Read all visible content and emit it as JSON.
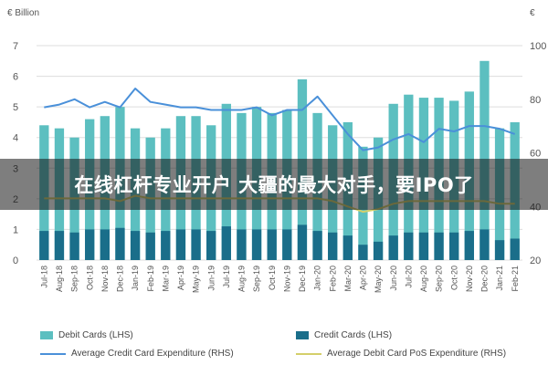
{
  "chart_data": {
    "type": "bar",
    "title": "",
    "unit_left": "€ Billion",
    "unit_right": "€",
    "y_left": {
      "ticks": [
        0,
        1,
        2,
        3,
        4,
        5,
        6,
        7
      ],
      "range": [
        0,
        7
      ]
    },
    "y_right": {
      "ticks": [
        20,
        40,
        60,
        80,
        100
      ],
      "range": [
        20,
        100
      ]
    },
    "categories": [
      "Jul-18",
      "Aug-18",
      "Sep-18",
      "Oct-18",
      "Nov-18",
      "Dec-18",
      "Jan-19",
      "Feb-19",
      "Mar-19",
      "Apr-19",
      "May-19",
      "Jun-19",
      "Jul-19",
      "Aug-19",
      "Sep-19",
      "Oct-19",
      "Nov-19",
      "Dec-19",
      "Jan-20",
      "Feb-20",
      "Mar-20",
      "Apr-20",
      "May-20",
      "Jun-20",
      "Jul-20",
      "Aug-20",
      "Sep-20",
      "Oct-20",
      "Nov-20",
      "Dec-20",
      "Jan-21",
      "Feb-21"
    ],
    "x_tick_labels": [
      "Jul-18",
      "Aug-18",
      "Sep-18",
      "Oct-18",
      "Nov-18",
      "Dec-18",
      "Jan-19",
      "Feb-19",
      "Mar-19",
      "Apr-19",
      "May-19",
      "Jun-19",
      "Jul-19",
      "Aug-19",
      "Sep-19",
      "Oct-19",
      "Nov-19",
      "Dec-19",
      "Jan-20",
      "Feb-20",
      "Mar-20",
      "Apr-20",
      "May-20",
      "Jun-20",
      "Jul-20",
      "Aug-20",
      "Sep-20",
      "Oct-20",
      "Nov-20",
      "Dec-20",
      "Jan-21",
      "Feb-21"
    ],
    "series": [
      {
        "name": "Debit Cards (LHS)",
        "type": "bar",
        "axis": "left",
        "color": "#5cbfc0",
        "values": [
          4.4,
          4.3,
          4.0,
          4.6,
          4.7,
          5.0,
          4.3,
          4.0,
          4.3,
          4.7,
          4.7,
          4.4,
          5.1,
          4.8,
          5.0,
          4.8,
          4.9,
          5.9,
          4.8,
          4.4,
          4.5,
          3.7,
          4.0,
          5.1,
          5.4,
          5.3,
          5.3,
          5.2,
          5.5,
          6.5,
          4.3,
          4.5
        ]
      },
      {
        "name": "Credit Cards (LHS)",
        "type": "bar",
        "axis": "left",
        "color": "#1a6e8a",
        "values": [
          0.95,
          0.95,
          0.9,
          1.0,
          1.0,
          1.05,
          0.95,
          0.9,
          0.95,
          1.0,
          1.0,
          0.95,
          1.1,
          1.0,
          1.0,
          1.0,
          1.0,
          1.15,
          0.95,
          0.9,
          0.8,
          0.5,
          0.6,
          0.8,
          0.9,
          0.9,
          0.9,
          0.9,
          0.95,
          1.0,
          0.65,
          0.7
        ]
      },
      {
        "name": "Average Credit Card Expenditure (RHS)",
        "type": "line",
        "axis": "right",
        "color": "#4a90d9",
        "values": [
          77,
          78,
          80,
          77,
          79,
          77,
          84,
          79,
          78,
          77,
          77,
          76,
          76,
          76,
          77,
          74,
          76,
          76,
          81,
          74,
          67,
          61,
          62,
          65,
          67,
          64,
          69,
          68,
          70,
          70,
          69,
          67
        ]
      },
      {
        "name": "Average Debit Card PoS Expenditure (RHS)",
        "type": "line",
        "axis": "right",
        "color": "#d4cf6a",
        "values": [
          43,
          43,
          43,
          43,
          43,
          42,
          44,
          43,
          43,
          43,
          43,
          43,
          43,
          43,
          43,
          43,
          43,
          43,
          43,
          42,
          40,
          38,
          39,
          41,
          42,
          42,
          42,
          42,
          42,
          42,
          41,
          41
        ]
      }
    ],
    "grid": "horizontal",
    "legend_position": "bottom"
  },
  "overlay": {
    "banner_text": "在线杠杆专业开户 大疆的最大对手，要IPO了"
  }
}
